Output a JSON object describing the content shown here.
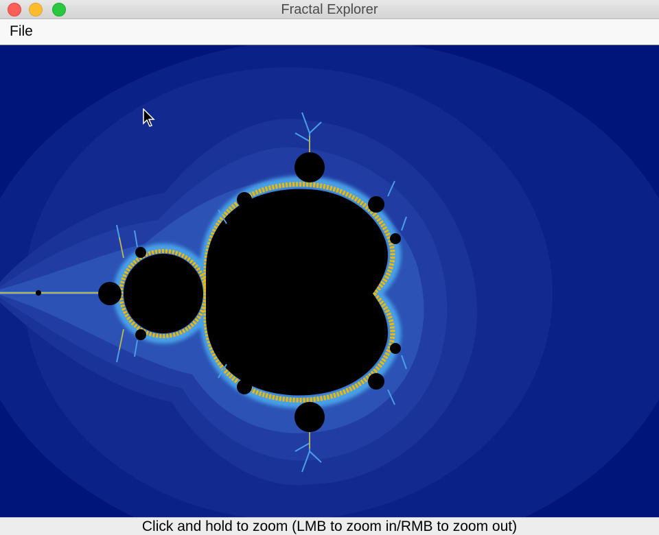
{
  "window": {
    "title": "Fractal Explorer"
  },
  "menu": {
    "file_label": "File"
  },
  "status": {
    "hint": "Click and hold to zoom (LMB to zoom in/RMB to zoom out)"
  },
  "colors": {
    "background": "#00157a",
    "set": "#000000",
    "edge_glow": "#f0b800",
    "edge_blue": "#3a8fd8"
  },
  "icons": {
    "pointer": "mouse-pointer-icon"
  }
}
